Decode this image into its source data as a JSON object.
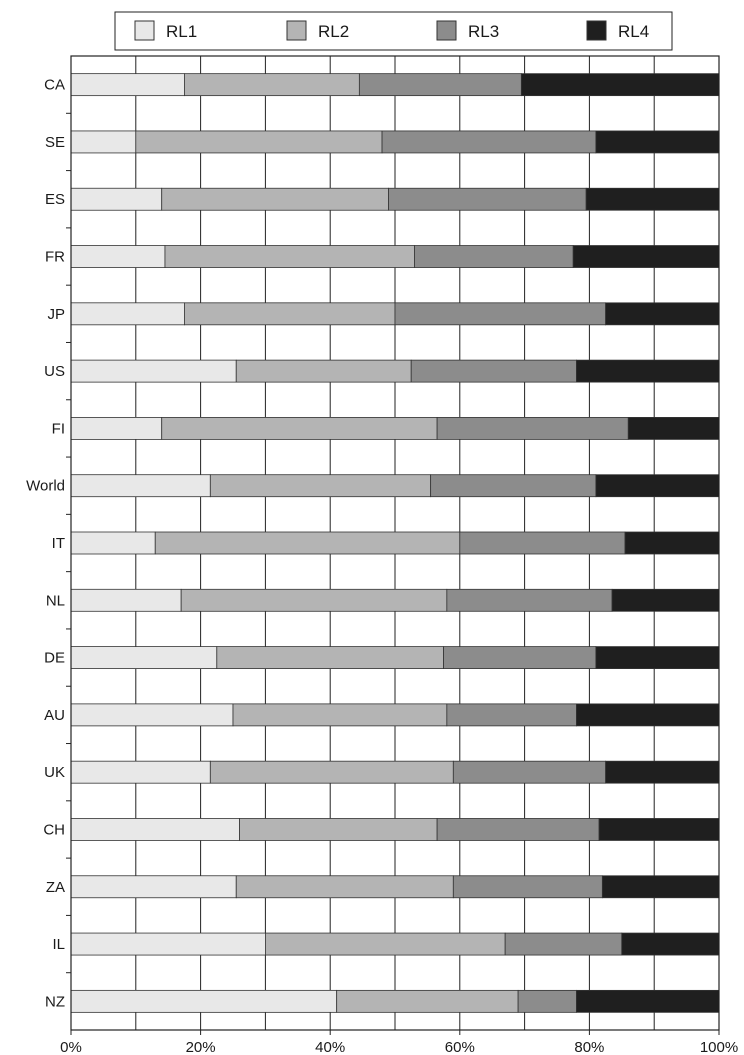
{
  "chart_data": {
    "type": "bar",
    "orientation": "horizontal",
    "stacked": true,
    "title": "",
    "xlabel": "",
    "ylabel": "",
    "xlim": [
      0,
      100
    ],
    "x_ticks": [
      "0%",
      "20%",
      "40%",
      "60%",
      "80%",
      "100%"
    ],
    "grid": true,
    "legend_position": "top",
    "categories": [
      "CA",
      "SE",
      "ES",
      "FR",
      "JP",
      "US",
      "FI",
      "World",
      "IT",
      "NL",
      "DE",
      "AU",
      "UK",
      "CH",
      "ZA",
      "IL",
      "NZ"
    ],
    "series": [
      {
        "name": "RL1",
        "color": "#e8e8e8",
        "values": [
          17.5,
          10.0,
          14.0,
          14.5,
          17.5,
          25.5,
          14.0,
          21.5,
          13.0,
          17.0,
          22.5,
          25.0,
          21.5,
          26.0,
          25.5,
          30.0,
          41.0
        ]
      },
      {
        "name": "RL2",
        "color": "#b4b4b4",
        "values": [
          27.0,
          38.0,
          35.0,
          38.5,
          32.5,
          27.0,
          42.5,
          34.0,
          47.0,
          41.0,
          35.0,
          33.0,
          37.5,
          30.5,
          33.5,
          37.0,
          28.0
        ]
      },
      {
        "name": "RL3",
        "color": "#8c8c8c",
        "values": [
          25.0,
          33.0,
          30.5,
          24.5,
          32.5,
          25.5,
          29.5,
          25.5,
          25.5,
          25.5,
          23.5,
          20.0,
          23.5,
          25.0,
          23.0,
          18.0,
          9.0
        ]
      },
      {
        "name": "RL4",
        "color": "#1f1f1f",
        "values": [
          30.5,
          19.0,
          20.5,
          22.5,
          17.5,
          22.0,
          14.0,
          19.0,
          14.5,
          16.5,
          19.0,
          22.0,
          17.5,
          18.5,
          18.0,
          15.0,
          22.0
        ]
      }
    ]
  }
}
